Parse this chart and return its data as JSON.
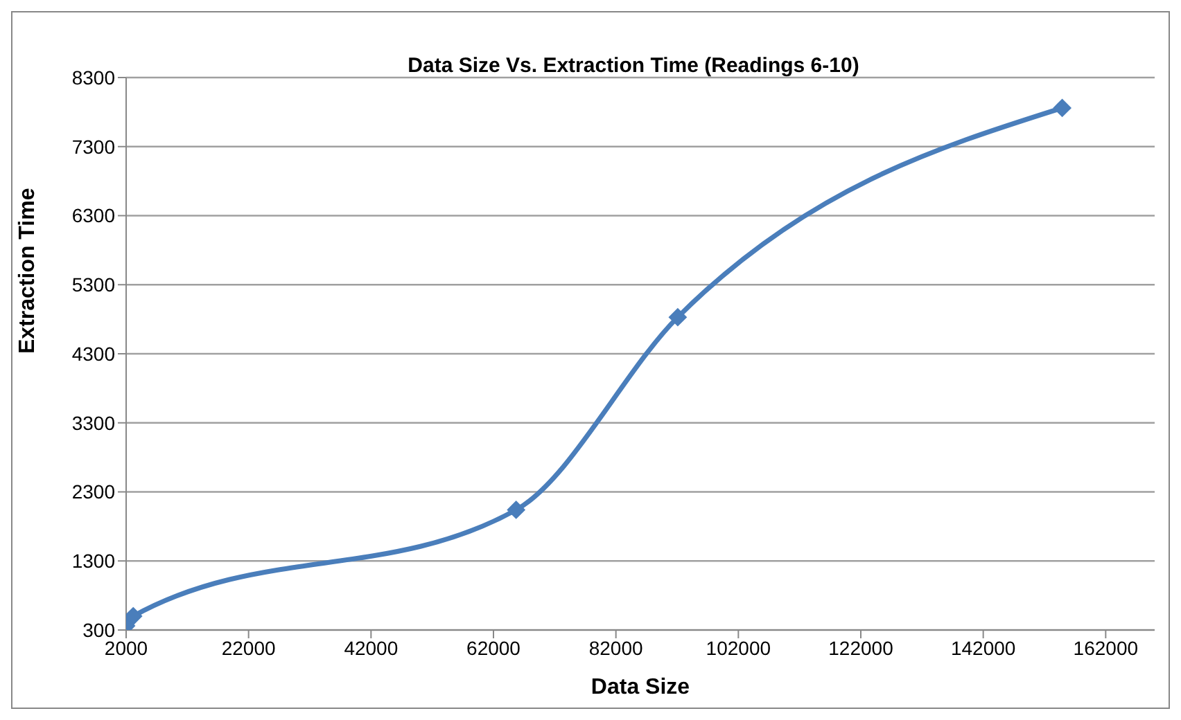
{
  "chart_data": {
    "type": "line",
    "title": "Data Size Vs. Extraction Time (Readings 6-10)",
    "xlabel": "Data Size",
    "ylabel": "Extraction Time",
    "x": [
      2000,
      3150,
      65700,
      92100,
      154900
    ],
    "series": [
      {
        "color": "#4a7ebb",
        "values": [
          360,
          500,
          2040,
          4830,
          7860
        ]
      }
    ],
    "xlim": [
      2000,
      170000
    ],
    "xticks": [
      2000,
      22000,
      42000,
      62000,
      82000,
      102000,
      122000,
      142000,
      162000
    ],
    "ylim": [
      300,
      8300
    ],
    "yticks": [
      300,
      1300,
      2300,
      3300,
      4300,
      5300,
      6300,
      7300,
      8300
    ],
    "grid": "y",
    "marker": "diamond",
    "line_style": "solid",
    "legend": false
  }
}
